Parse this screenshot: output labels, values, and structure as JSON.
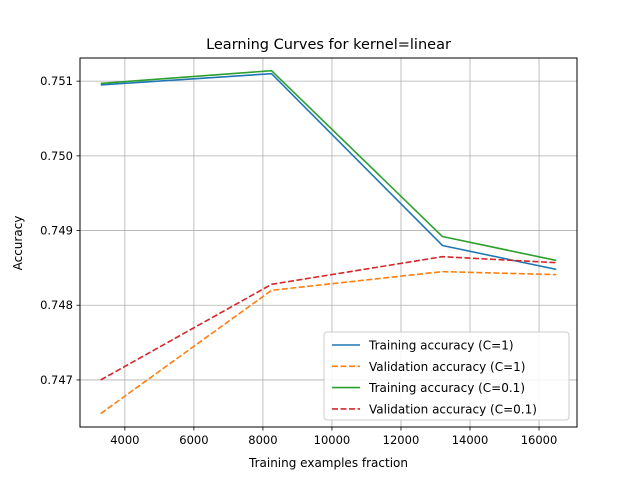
{
  "chart_data": {
    "type": "line",
    "title": "Learning Curves for kernel=linear",
    "xlabel": "Training examples fraction",
    "ylabel": "Accuracy",
    "x": [
      3300,
      8250,
      13200,
      16500
    ],
    "xlim": [
      2700,
      17100
    ],
    "ylim": [
      0.74637,
      0.75131
    ],
    "xticks": [
      4000,
      6000,
      8000,
      10000,
      12000,
      14000,
      16000
    ],
    "yticks": [
      0.747,
      0.748,
      0.749,
      0.75,
      0.751
    ],
    "ytick_labels": [
      "0.747",
      "0.748",
      "0.749",
      "0.750",
      "0.751"
    ],
    "grid": true,
    "legend_position": "lower-right",
    "series": [
      {
        "name": "Training accuracy (C=1)",
        "values": [
          0.75095,
          0.7511,
          0.7488,
          0.74848
        ],
        "color": "#1f77b4",
        "dash": "solid"
      },
      {
        "name": "Validation accuracy (C=1)",
        "values": [
          0.74655,
          0.7482,
          0.74845,
          0.74841
        ],
        "color": "#ff7f0e",
        "dash": "dashed"
      },
      {
        "name": "Training accuracy (C=0.1)",
        "values": [
          0.75097,
          0.75114,
          0.74892,
          0.7486
        ],
        "color": "#2ca02c",
        "dash": "solid"
      },
      {
        "name": "Validation accuracy (C=0.1)",
        "values": [
          0.747,
          0.74828,
          0.74865,
          0.74857
        ],
        "color": "#d62728",
        "dash": "dashed"
      }
    ]
  }
}
